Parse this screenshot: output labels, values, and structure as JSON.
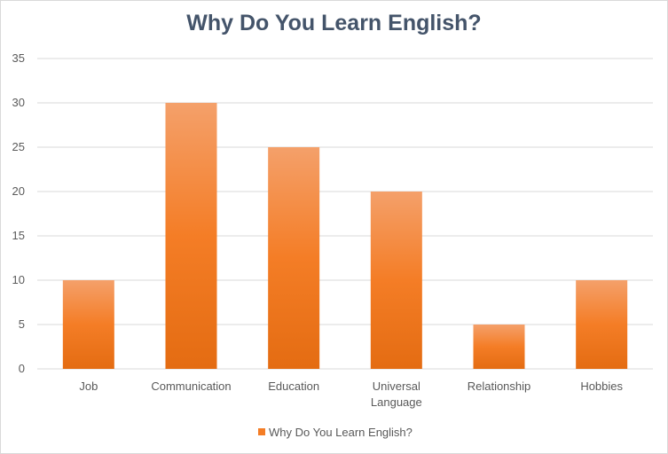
{
  "chart_data": {
    "type": "bar",
    "title": "Why Do You Learn English?",
    "categories": [
      "Job",
      "Communication",
      "Education",
      "Universal Language",
      "Relationship",
      "Hobbies"
    ],
    "category_lines": [
      [
        "Job"
      ],
      [
        "Communication"
      ],
      [
        "Education"
      ],
      [
        "Universal",
        "Language"
      ],
      [
        "Relationship"
      ],
      [
        "Hobbies"
      ]
    ],
    "series": [
      {
        "name": "Why Do You Learn English?",
        "values": [
          10,
          30,
          25,
          20,
          5,
          10
        ]
      }
    ],
    "ylim": [
      0,
      35
    ],
    "yticks": [
      0,
      5,
      10,
      15,
      20,
      25,
      30,
      35
    ],
    "grid": true,
    "legend": "bottom",
    "colors": {
      "bar_top": "#f4a06a",
      "bar_mid": "#f47d26",
      "bar_bottom": "#e46c12",
      "grid": "#d9d9d9",
      "title": "#44546a"
    }
  }
}
